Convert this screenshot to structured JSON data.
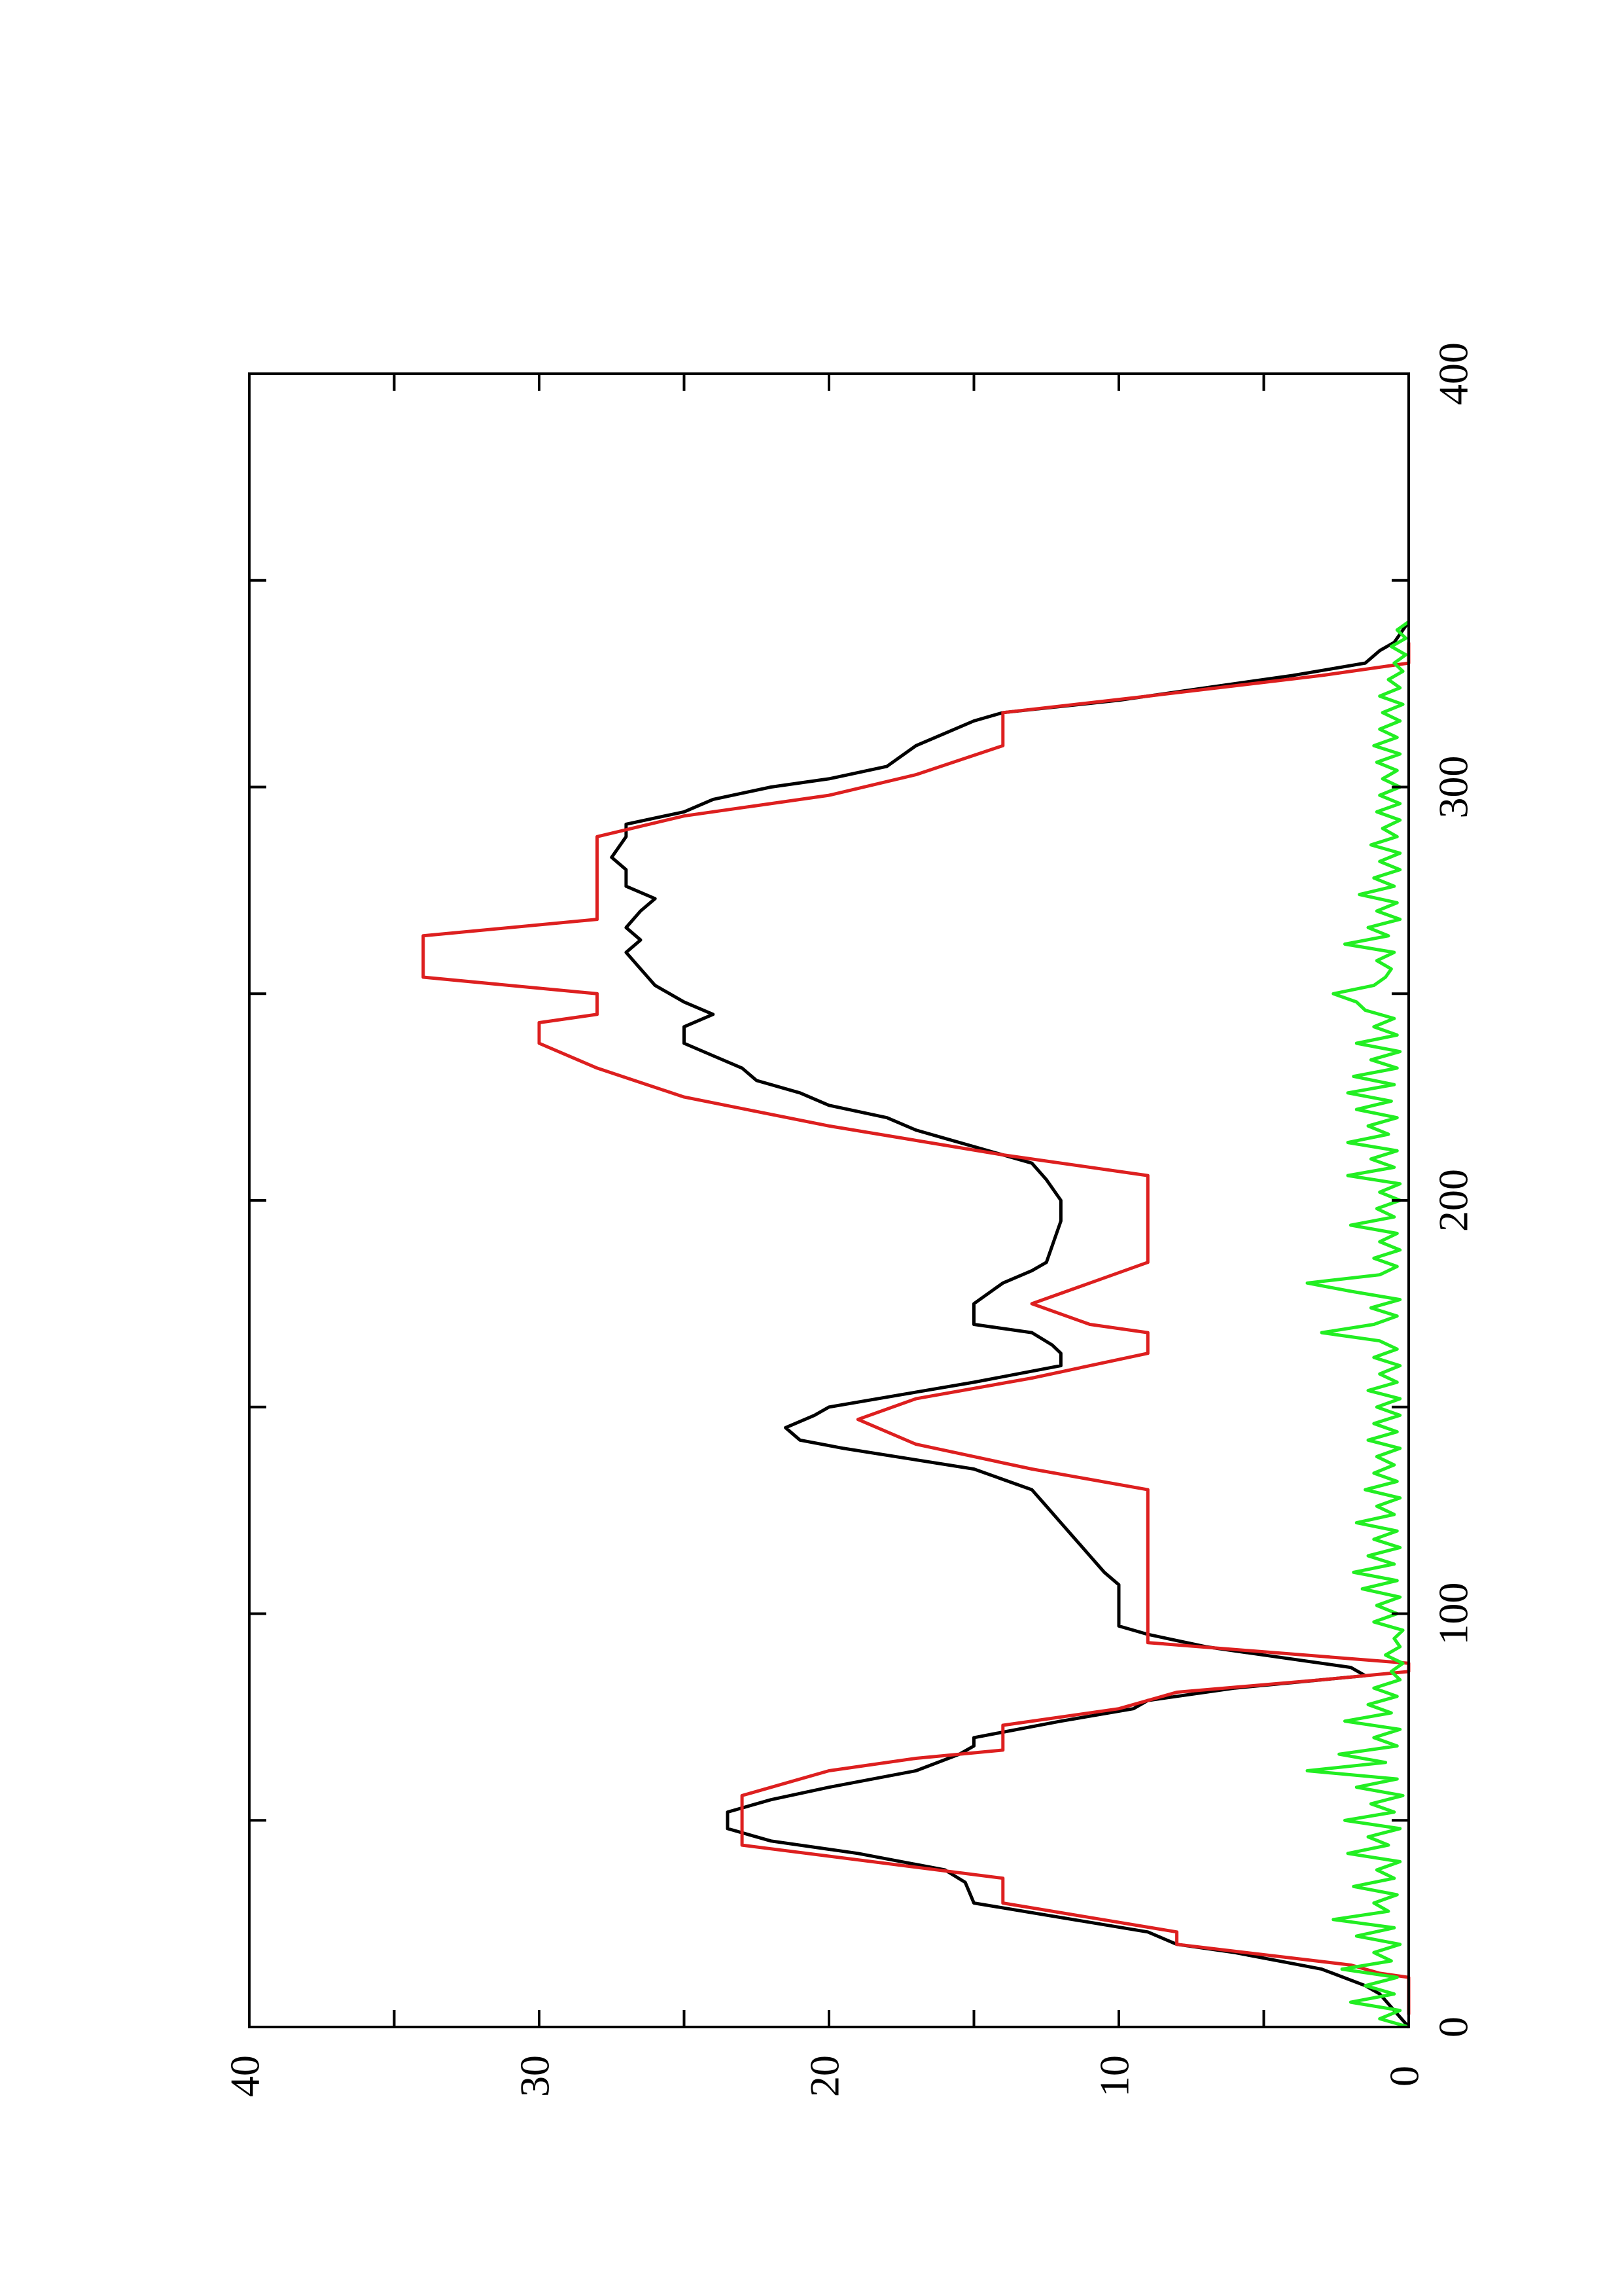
{
  "chart_data": {
    "type": "line",
    "orientation": "rotated-90-counterclockwise",
    "title": "",
    "xlabel": "",
    "ylabel": "",
    "xlim": [
      0,
      400
    ],
    "ylim": [
      0,
      40
    ],
    "xticks": [
      0,
      100,
      200,
      300,
      400
    ],
    "yticks": [
      0,
      10,
      20,
      30,
      40
    ],
    "xtick_labels": [
      "0",
      "100",
      "200",
      "300",
      "400"
    ],
    "ytick_labels": [
      "0",
      "10",
      "20",
      "30",
      "40"
    ],
    "grid": false,
    "legend": "none",
    "series": [
      {
        "color": "#000000",
        "style": "line",
        "points": [
          [
            0,
            0
          ],
          [
            8,
            1
          ],
          [
            10,
            1.5
          ],
          [
            14,
            3
          ],
          [
            18,
            6
          ],
          [
            20,
            8
          ],
          [
            23,
            9
          ],
          [
            30,
            15
          ],
          [
            35,
            15.3
          ],
          [
            38,
            16
          ],
          [
            42,
            19
          ],
          [
            45,
            22
          ],
          [
            48,
            23.5
          ],
          [
            52,
            23.5
          ],
          [
            55,
            22
          ],
          [
            58,
            20
          ],
          [
            62,
            17
          ],
          [
            66,
            15.5
          ],
          [
            68,
            15
          ],
          [
            70,
            15
          ],
          [
            74,
            12
          ],
          [
            77,
            9.5
          ],
          [
            79,
            9
          ],
          [
            82,
            6
          ],
          [
            85,
            1.5
          ],
          [
            87,
            2
          ],
          [
            90,
            5
          ],
          [
            92,
            7
          ],
          [
            95,
            9
          ],
          [
            97,
            10
          ],
          [
            105,
            10
          ],
          [
            107,
            10
          ],
          [
            110,
            10.5
          ],
          [
            114,
            11
          ],
          [
            118,
            11.5
          ],
          [
            122,
            12
          ],
          [
            126,
            12.5
          ],
          [
            130,
            13
          ],
          [
            135,
            15
          ],
          [
            140,
            19.5
          ],
          [
            142,
            21
          ],
          [
            145,
            21.5
          ],
          [
            148,
            20.5
          ],
          [
            150,
            20
          ],
          [
            153,
            17.5
          ],
          [
            156,
            15
          ],
          [
            160,
            12
          ],
          [
            163,
            12
          ],
          [
            165,
            12.3
          ],
          [
            168,
            13
          ],
          [
            170,
            15
          ],
          [
            175,
            15
          ],
          [
            180,
            14
          ],
          [
            183,
            13
          ],
          [
            185,
            12.5
          ],
          [
            195,
            12
          ],
          [
            200,
            12
          ],
          [
            205,
            12.5
          ],
          [
            209,
            13
          ],
          [
            213,
            15
          ],
          [
            215,
            16
          ],
          [
            217,
            17
          ],
          [
            220,
            18
          ],
          [
            223,
            20
          ],
          [
            226,
            21
          ],
          [
            229,
            22.5
          ],
          [
            232,
            23
          ],
          [
            235,
            24
          ],
          [
            238,
            25
          ],
          [
            242,
            25
          ],
          [
            245,
            24
          ],
          [
            248,
            25
          ],
          [
            252,
            26
          ],
          [
            256,
            26.5
          ],
          [
            260,
            27
          ],
          [
            263,
            26.5
          ],
          [
            266,
            27
          ],
          [
            270,
            26.5
          ],
          [
            273,
            26
          ],
          [
            276,
            27
          ],
          [
            280,
            27
          ],
          [
            283,
            27.5
          ],
          [
            288,
            27
          ],
          [
            291,
            27
          ],
          [
            294,
            25
          ],
          [
            297,
            24
          ],
          [
            300,
            22
          ],
          [
            302,
            20
          ],
          [
            305,
            18
          ],
          [
            310,
            17
          ],
          [
            313,
            16
          ],
          [
            316,
            15
          ],
          [
            318,
            14
          ],
          [
            321,
            10
          ],
          [
            324,
            7
          ],
          [
            327,
            4
          ],
          [
            330,
            1.5
          ],
          [
            333,
            1
          ],
          [
            335,
            0.5
          ],
          [
            340,
            0
          ]
        ]
      },
      {
        "color": "#dd1f1f",
        "style": "step",
        "points": [
          [
            3,
            0
          ],
          [
            12,
            0
          ],
          [
            13,
            1
          ],
          [
            15,
            2
          ],
          [
            20,
            8
          ],
          [
            23,
            8
          ],
          [
            30,
            14
          ],
          [
            36,
            14
          ],
          [
            44,
            23
          ],
          [
            56,
            23
          ],
          [
            62,
            20
          ],
          [
            65,
            17
          ],
          [
            67,
            14
          ],
          [
            73,
            14
          ],
          [
            77,
            10
          ],
          [
            81,
            8
          ],
          [
            84,
            3
          ],
          [
            86,
            0
          ],
          [
            88,
            0
          ],
          [
            93,
            9
          ],
          [
            130,
            9
          ],
          [
            135,
            13
          ],
          [
            141,
            17
          ],
          [
            147,
            19
          ],
          [
            152,
            17
          ],
          [
            157,
            13
          ],
          [
            163,
            9
          ],
          [
            168,
            9
          ],
          [
            170,
            11
          ],
          [
            175,
            13
          ],
          [
            180,
            11
          ],
          [
            185,
            9
          ],
          [
            206,
            9
          ],
          [
            211,
            14
          ],
          [
            218,
            20
          ],
          [
            225,
            25
          ],
          [
            232,
            28
          ],
          [
            238,
            30
          ],
          [
            243,
            30
          ],
          [
            245,
            28
          ],
          [
            250,
            28
          ],
          [
            254,
            34
          ],
          [
            264,
            34
          ],
          [
            268,
            28
          ],
          [
            288,
            28
          ],
          [
            293,
            25
          ],
          [
            298,
            20
          ],
          [
            303,
            17
          ],
          [
            310,
            14
          ],
          [
            318,
            14
          ],
          [
            322,
            9
          ],
          [
            327,
            3
          ],
          [
            330,
            0
          ],
          [
            335,
            0
          ]
        ]
      },
      {
        "color": "#22ee22",
        "style": "noise",
        "points": [
          [
            0,
            0
          ],
          [
            2,
            1
          ],
          [
            4,
            0.3
          ],
          [
            6,
            2
          ],
          [
            8,
            0.5
          ],
          [
            10,
            1.5
          ],
          [
            12,
            0.4
          ],
          [
            14,
            2.3
          ],
          [
            16,
            0.6
          ],
          [
            18,
            1.2
          ],
          [
            20,
            0.3
          ],
          [
            22,
            1.8
          ],
          [
            24,
            0.5
          ],
          [
            26,
            2.6
          ],
          [
            28,
            0.7
          ],
          [
            30,
            1.2
          ],
          [
            32,
            0.4
          ],
          [
            34,
            1.9
          ],
          [
            36,
            0.5
          ],
          [
            38,
            1.1
          ],
          [
            40,
            0.3
          ],
          [
            42,
            2.1
          ],
          [
            44,
            0.7
          ],
          [
            46,
            1.4
          ],
          [
            48,
            0.3
          ],
          [
            50,
            2.2
          ],
          [
            52,
            0.5
          ],
          [
            54,
            1.3
          ],
          [
            56,
            0.2
          ],
          [
            58,
            1.8
          ],
          [
            60,
            0.4
          ],
          [
            62,
            3.5
          ],
          [
            64,
            0.8
          ],
          [
            66,
            2.4
          ],
          [
            68,
            0.4
          ],
          [
            70,
            1.2
          ],
          [
            72,
            0.3
          ],
          [
            74,
            2.2
          ],
          [
            76,
            0.6
          ],
          [
            78,
            1.4
          ],
          [
            80,
            0.4
          ],
          [
            82,
            1.2
          ],
          [
            84,
            0.3
          ],
          [
            86,
            0.6
          ],
          [
            88,
            0.2
          ],
          [
            90,
            0.8
          ],
          [
            92,
            0.3
          ],
          [
            94,
            0.5
          ],
          [
            96,
            0.2
          ],
          [
            98,
            1.2
          ],
          [
            100,
            0.4
          ],
          [
            102,
            1.1
          ],
          [
            104,
            0.3
          ],
          [
            106,
            1.6
          ],
          [
            108,
            0.4
          ],
          [
            110,
            1.9
          ],
          [
            112,
            0.5
          ],
          [
            114,
            1.4
          ],
          [
            116,
            0.3
          ],
          [
            118,
            1.2
          ],
          [
            120,
            0.4
          ],
          [
            122,
            1.8
          ],
          [
            124,
            0.5
          ],
          [
            126,
            1.1
          ],
          [
            128,
            0.3
          ],
          [
            130,
            1.5
          ],
          [
            132,
            0.4
          ],
          [
            134,
            1.2
          ],
          [
            136,
            0.5
          ],
          [
            138,
            1.1
          ],
          [
            140,
            0.3
          ],
          [
            142,
            1.4
          ],
          [
            144,
            0.4
          ],
          [
            146,
            1.2
          ],
          [
            148,
            0.3
          ],
          [
            150,
            1.1
          ],
          [
            152,
            0.3
          ],
          [
            154,
            1.4
          ],
          [
            156,
            0.4
          ],
          [
            158,
            1.0
          ],
          [
            160,
            0.3
          ],
          [
            162,
            1.2
          ],
          [
            164,
            0.4
          ],
          [
            166,
            1.0
          ],
          [
            168,
            3.0
          ],
          [
            170,
            1.2
          ],
          [
            172,
            0.4
          ],
          [
            174,
            1.3
          ],
          [
            176,
            0.3
          ],
          [
            178,
            2.0
          ],
          [
            180,
            3.5
          ],
          [
            182,
            1.0
          ],
          [
            184,
            0.4
          ],
          [
            186,
            1.2
          ],
          [
            188,
            0.3
          ],
          [
            190,
            1.0
          ],
          [
            192,
            0.4
          ],
          [
            194,
            2.0
          ],
          [
            196,
            0.5
          ],
          [
            198,
            1.1
          ],
          [
            200,
            0.3
          ],
          [
            202,
            1.0
          ],
          [
            204,
            0.3
          ],
          [
            206,
            2.1
          ],
          [
            208,
            0.5
          ],
          [
            210,
            1.3
          ],
          [
            212,
            0.4
          ],
          [
            214,
            2.1
          ],
          [
            216,
            0.7
          ],
          [
            218,
            1.4
          ],
          [
            220,
            0.4
          ],
          [
            222,
            1.8
          ],
          [
            224,
            0.6
          ],
          [
            226,
            2.1
          ],
          [
            228,
            0.5
          ],
          [
            230,
            1.9
          ],
          [
            232,
            0.4
          ],
          [
            234,
            1.3
          ],
          [
            236,
            0.3
          ],
          [
            238,
            1.8
          ],
          [
            240,
            0.4
          ],
          [
            242,
            1.2
          ],
          [
            244,
            0.5
          ],
          [
            246,
            1.5
          ],
          [
            248,
            1.8
          ],
          [
            250,
            2.6
          ],
          [
            252,
            1.2
          ],
          [
            254,
            0.8
          ],
          [
            256,
            0.6
          ],
          [
            258,
            1.1
          ],
          [
            260,
            0.5
          ],
          [
            262,
            2.2
          ],
          [
            264,
            0.7
          ],
          [
            266,
            1.4
          ],
          [
            268,
            0.3
          ],
          [
            270,
            1.1
          ],
          [
            272,
            0.4
          ],
          [
            274,
            1.7
          ],
          [
            276,
            0.5
          ],
          [
            278,
            1.2
          ],
          [
            280,
            0.3
          ],
          [
            282,
            1.0
          ],
          [
            284,
            0.3
          ],
          [
            286,
            1.3
          ],
          [
            288,
            0.4
          ],
          [
            290,
            0.9
          ],
          [
            292,
            0.3
          ],
          [
            294,
            1.1
          ],
          [
            296,
            0.3
          ],
          [
            298,
            1.0
          ],
          [
            300,
            0.3
          ],
          [
            302,
            0.9
          ],
          [
            304,
            0.4
          ],
          [
            306,
            1.1
          ],
          [
            308,
            0.3
          ],
          [
            310,
            1.2
          ],
          [
            312,
            0.4
          ],
          [
            314,
            1.0
          ],
          [
            316,
            0.3
          ],
          [
            318,
            0.9
          ],
          [
            320,
            0.2
          ],
          [
            322,
            1.0
          ],
          [
            324,
            0.3
          ],
          [
            326,
            0.7
          ],
          [
            328,
            0.2
          ],
          [
            330,
            0.5
          ],
          [
            332,
            0.1
          ],
          [
            334,
            0.6
          ],
          [
            336,
            0.1
          ],
          [
            338,
            0.4
          ],
          [
            340,
            0
          ]
        ]
      }
    ]
  }
}
